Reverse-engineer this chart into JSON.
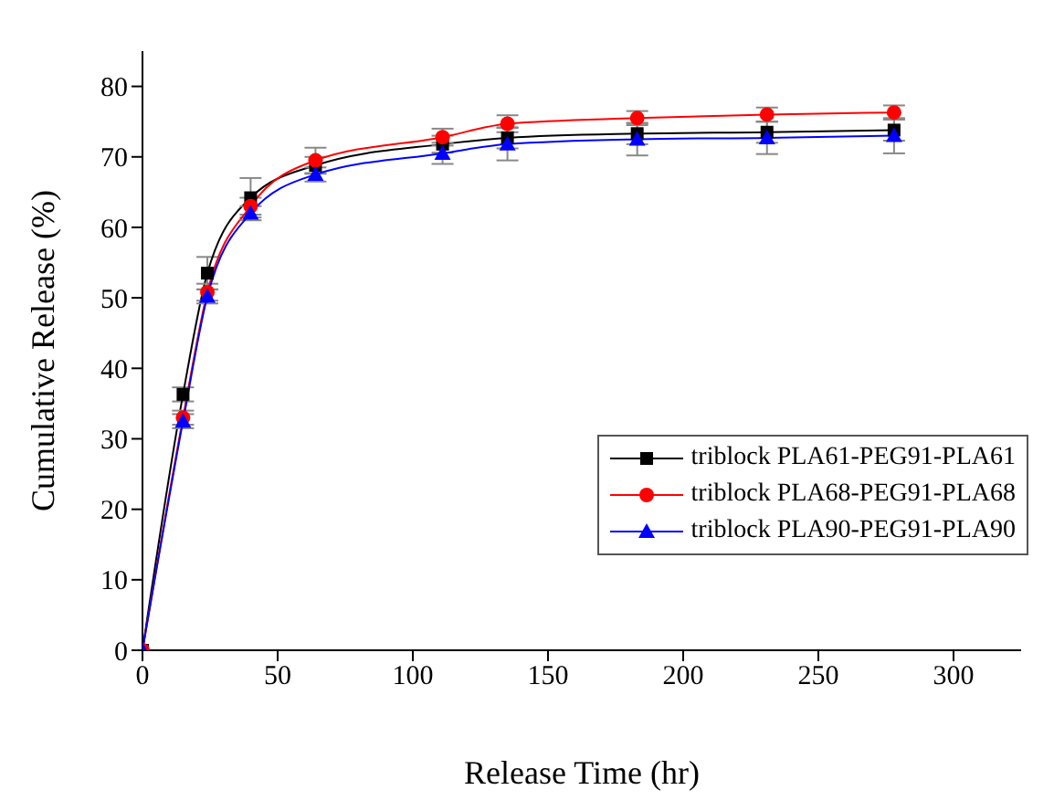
{
  "chart_data": {
    "type": "line",
    "xlabel": "Release Time (hr)",
    "ylabel": "Cumulative Release (%)",
    "xlim": [
      0,
      325
    ],
    "xticks": [
      0,
      50,
      100,
      150,
      200,
      250,
      300
    ],
    "ylim": [
      0,
      85
    ],
    "yticks": [
      0,
      10,
      20,
      30,
      40,
      50,
      60,
      70,
      80
    ],
    "legend": "right",
    "x": [
      0,
      15,
      24,
      40,
      64,
      111,
      135,
      183,
      231,
      278
    ],
    "series": [
      {
        "name": "triblock PLA61-PEG91-PLA61",
        "color": "#000000",
        "marker": "square",
        "values": [
          0,
          36.3,
          53.5,
          64.2,
          68.8,
          71.8,
          72.7,
          73.3,
          73.5,
          73.8
        ],
        "errors": [
          null,
          1,
          2.3,
          2.8,
          1.2,
          1.2,
          1.5,
          1.5,
          1.5,
          1.5
        ]
      },
      {
        "name": "triblock PLA68-PEG91-PLA68",
        "color": "#ff0000",
        "marker": "circle",
        "values": [
          0,
          33,
          50.8,
          63,
          69.5,
          72.8,
          74.7,
          75.5,
          76,
          76.3
        ],
        "errors": [
          null,
          1,
          1.2,
          1.2,
          1.8,
          1.2,
          1.2,
          1,
          1,
          1
        ]
      },
      {
        "name": "triblock PLA90-PEG91-PLA90",
        "color": "#0000ff",
        "marker": "triangle",
        "values": [
          0,
          32.5,
          50.2,
          62,
          67.5,
          70.5,
          71.8,
          72.5,
          72.7,
          73
        ],
        "errors": [
          null,
          1,
          1,
          1,
          1,
          1.5,
          2.3,
          2.3,
          2.3,
          2.5
        ]
      }
    ]
  }
}
